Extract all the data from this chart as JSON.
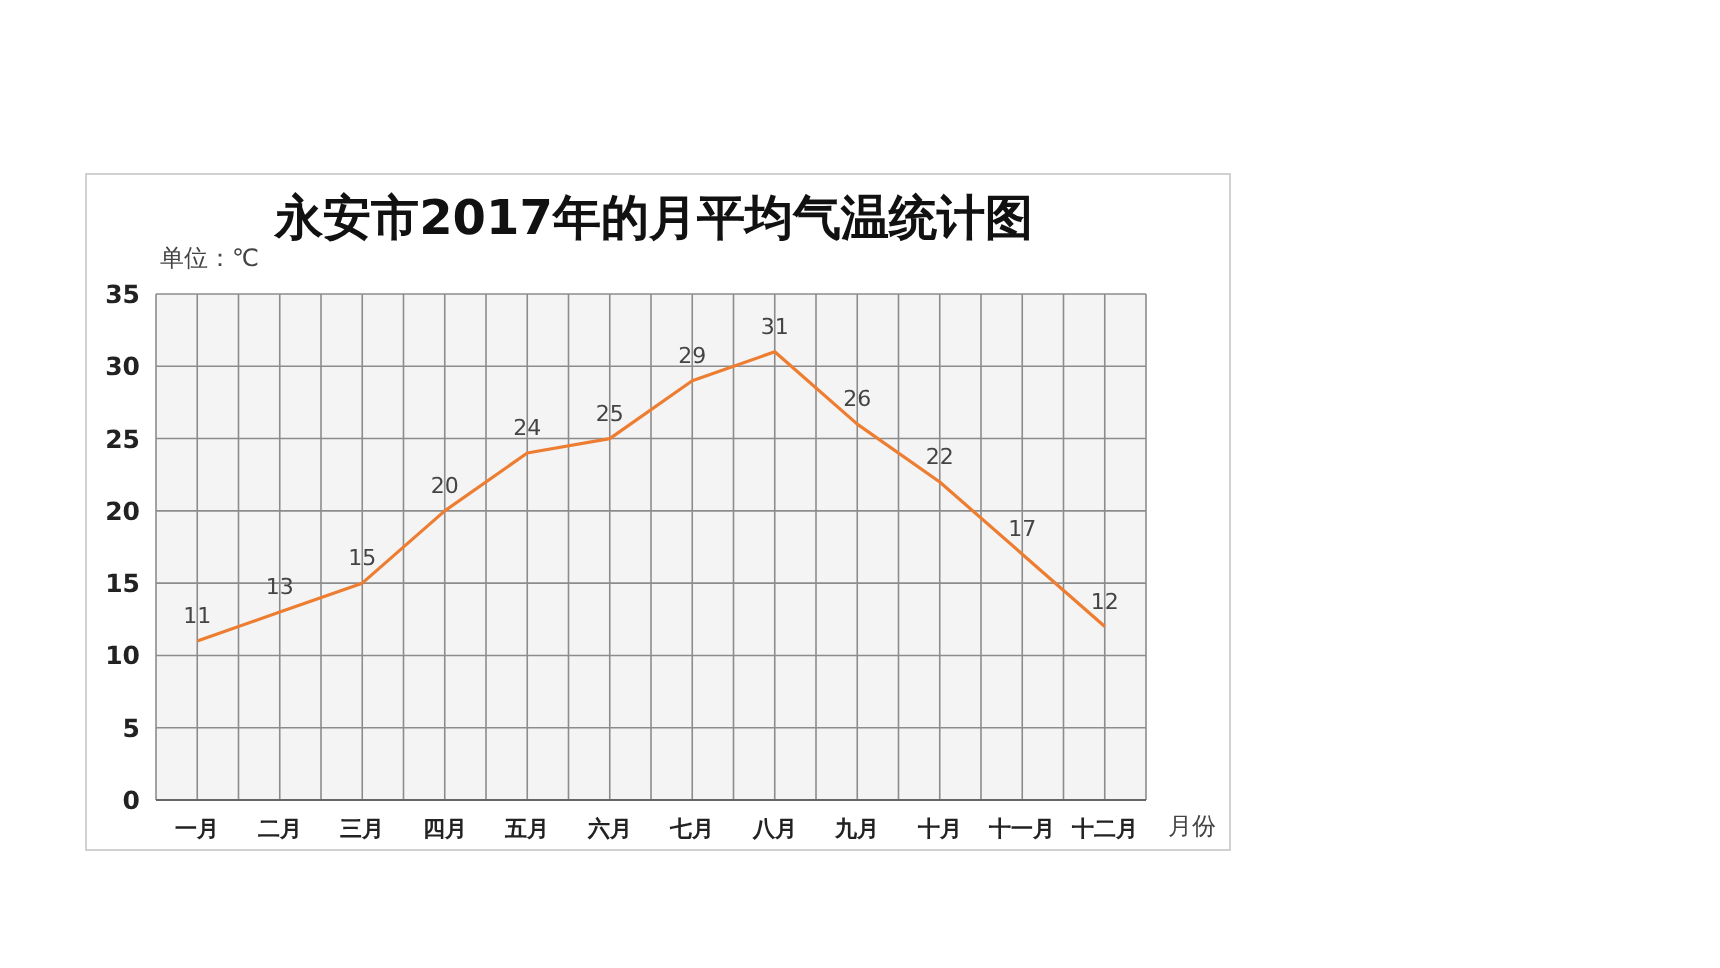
{
  "chart_data": {
    "type": "line",
    "title": "永安市2017年的月平均气温统计图",
    "ylabel": "单位：℃",
    "xlabel": "月份",
    "categories": [
      "一月",
      "二月",
      "三月",
      "四月",
      "五月",
      "六月",
      "七月",
      "八月",
      "九月",
      "十月",
      "十一月",
      "十二月"
    ],
    "values": [
      11,
      13,
      15,
      20,
      24,
      25,
      29,
      31,
      26,
      22,
      17,
      12
    ],
    "color": "#ed7d31",
    "ylim": [
      0,
      35
    ],
    "yticks": [
      0,
      5,
      10,
      15,
      20,
      25,
      30,
      35
    ],
    "grid": true,
    "data_labels": true,
    "marker": "none",
    "line_style": "solid"
  }
}
